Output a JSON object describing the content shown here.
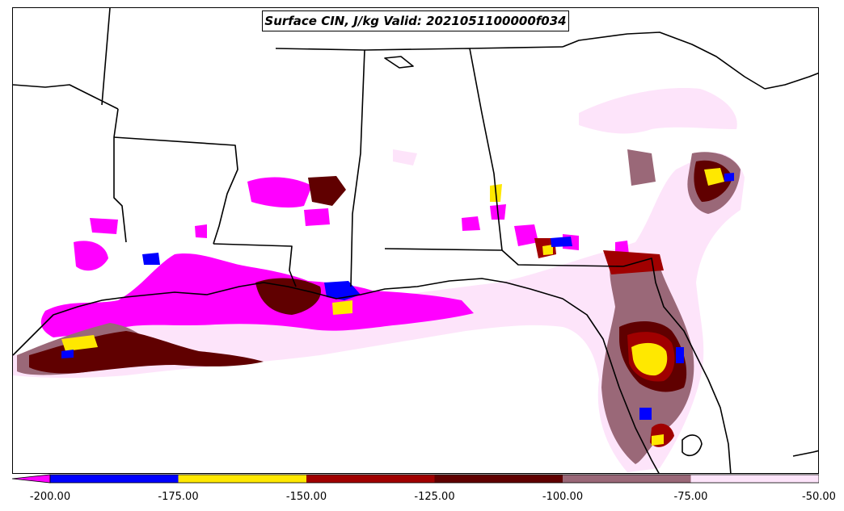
{
  "title": "Surface CIN, J/kg Valid: 2021051100000f034",
  "colorbar": {
    "extend": "min",
    "ticks": [
      "-200.00",
      "-175.00",
      "-150.00",
      "-125.00",
      "-100.00",
      "-75.00",
      "-50.00"
    ],
    "bins": [
      {
        "range": [
          -200,
          -175
        ],
        "color": "#0000ff"
      },
      {
        "range": [
          -175,
          -150
        ],
        "color": "#ffe800"
      },
      {
        "range": [
          -150,
          -125
        ],
        "color": "#a00000"
      },
      {
        "range": [
          -125,
          -100
        ],
        "color": "#600000"
      },
      {
        "range": [
          -100,
          -75
        ],
        "color": "#9a6878"
      },
      {
        "range": [
          -75,
          -50
        ],
        "color": "#fde4fa"
      }
    ],
    "under_color": "#ff00ff"
  },
  "colors": {
    "below_-200": "#ff00ff",
    "-200_to_-175": "#0000ff",
    "-175_to_-150": "#ffe800",
    "-150_to_-125": "#a00000",
    "-125_to_-100": "#600000",
    "-100_to_-75": "#9a6878",
    "-75_to_-50": "#fde4fa",
    "borders": "#000000"
  }
}
